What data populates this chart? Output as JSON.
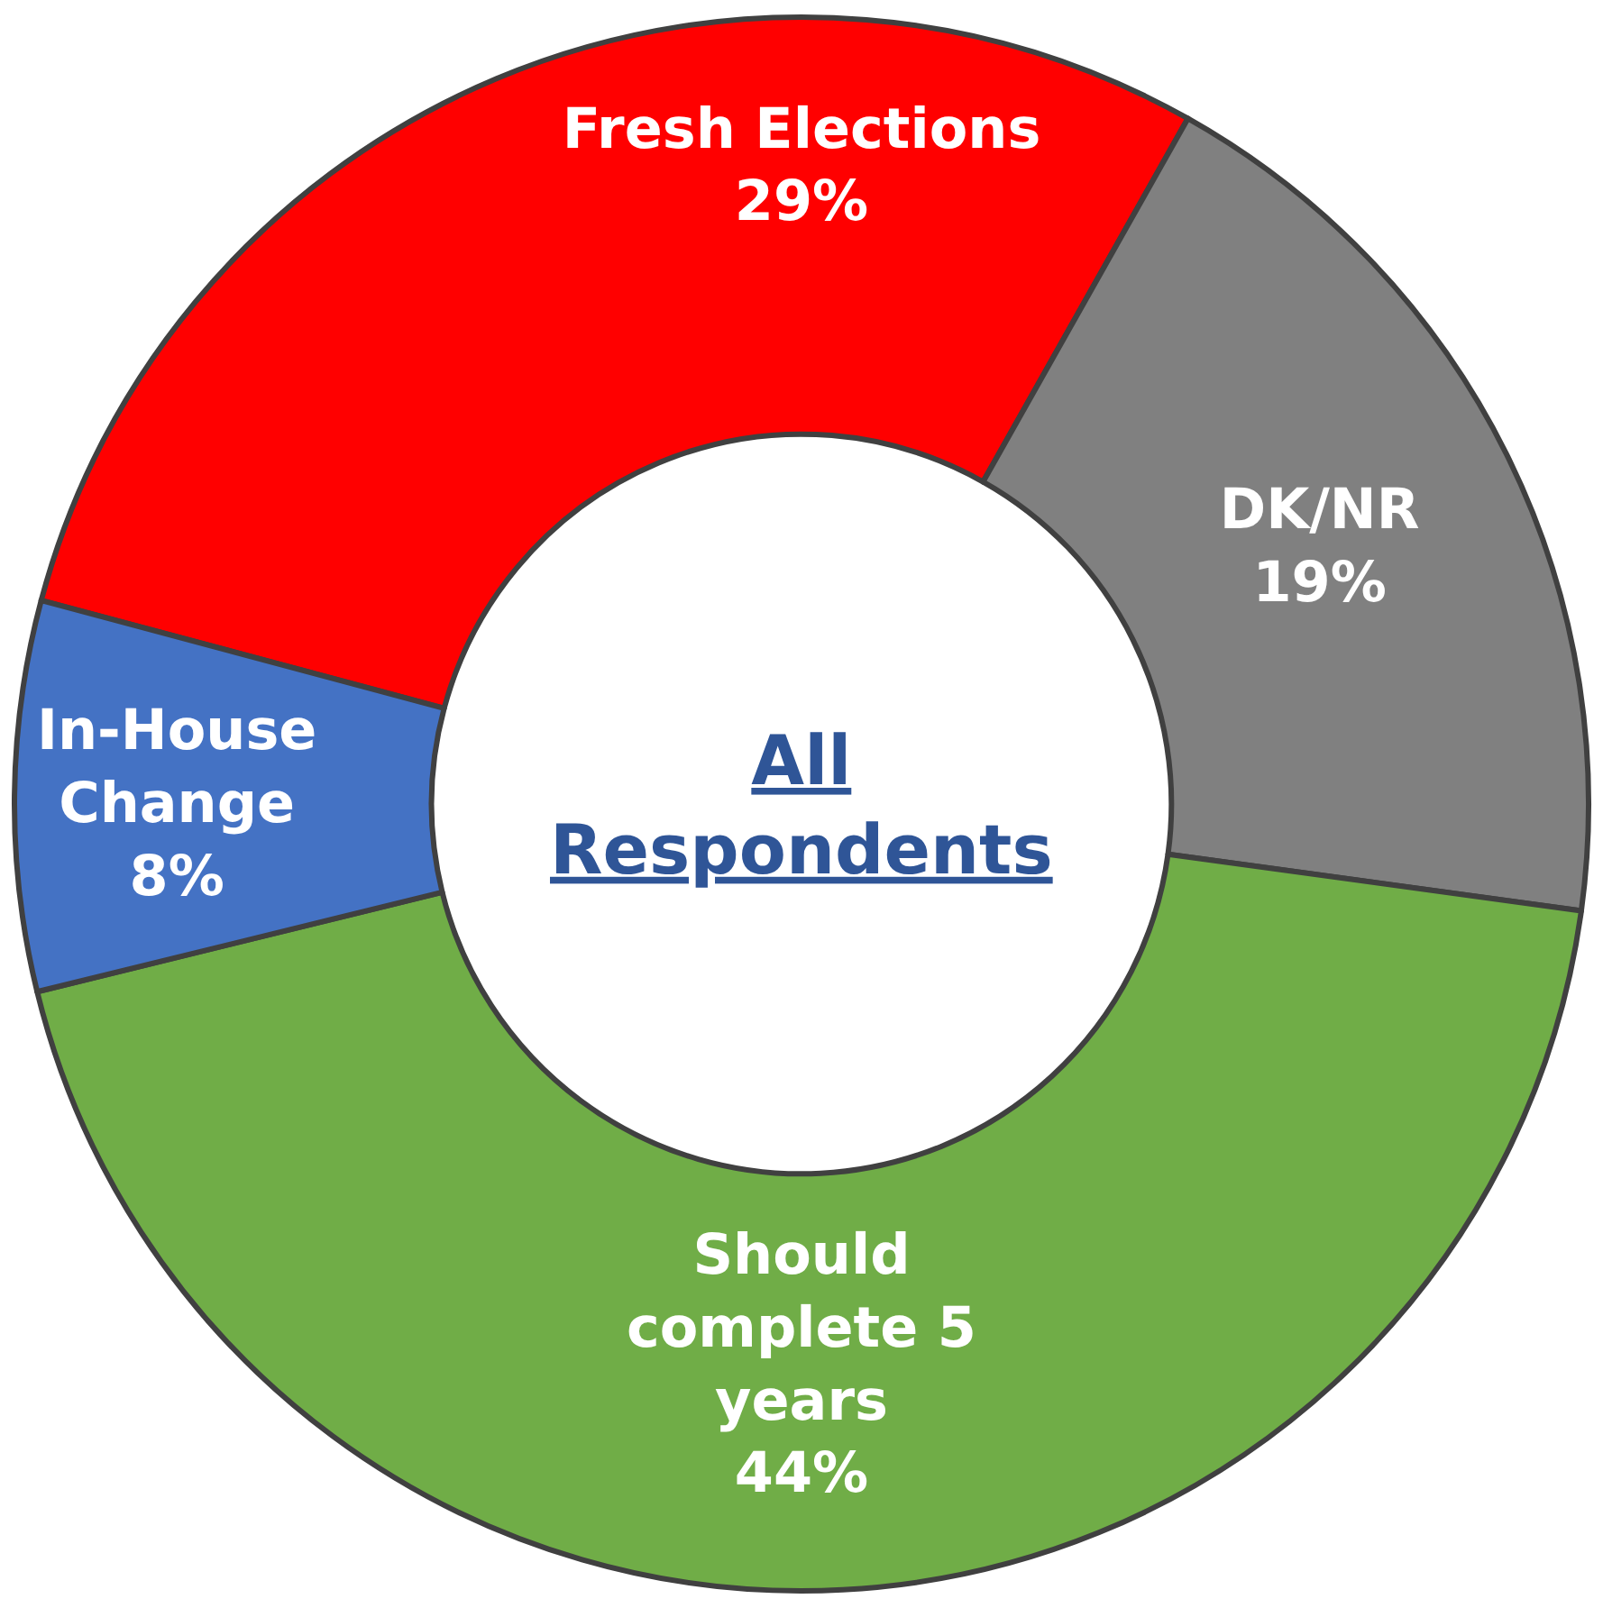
{
  "chart_data": {
    "type": "donut",
    "title": "All Respondents",
    "categories": [
      "Fresh Elections",
      "DK/NR",
      "Should complete 5 years",
      "In-House Change"
    ],
    "values": [
      29,
      19,
      44,
      8
    ],
    "value_labels": [
      "29%",
      "19%",
      "44%",
      "8%"
    ],
    "colors": [
      "#ff0000",
      "#808080",
      "#70ad47",
      "#4472c4"
    ],
    "legend": false
  }
}
